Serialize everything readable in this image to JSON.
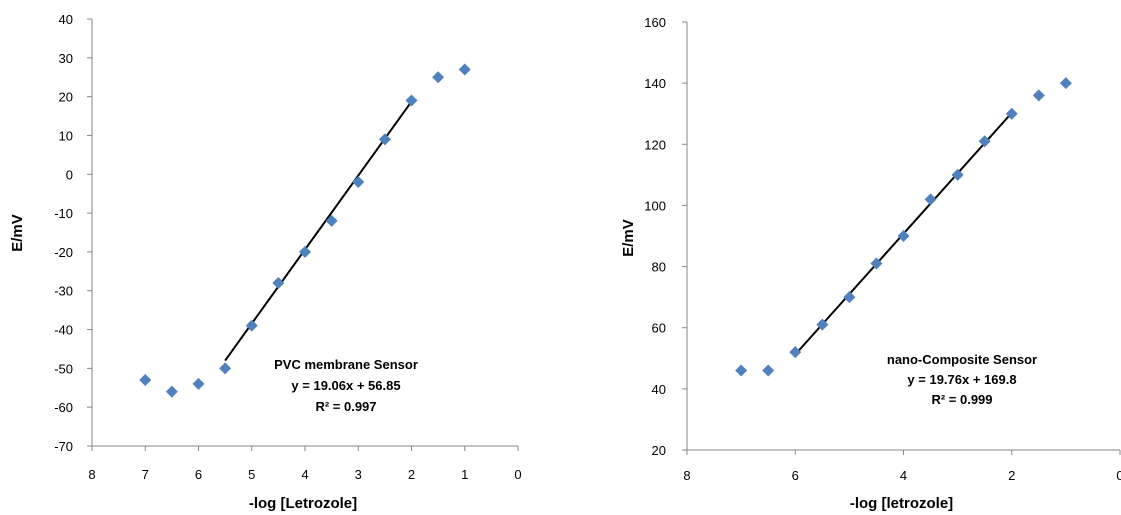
{
  "chart_data": [
    {
      "type": "scatter",
      "xlabel": "-log [Letrozole]",
      "ylabel": "E/mV",
      "xlim": [
        8,
        0
      ],
      "xreversed": true,
      "ylim": [
        -70,
        40
      ],
      "xticks": [
        "8",
        "7",
        "6",
        "5",
        "4",
        "3",
        "2",
        "1",
        "0"
      ],
      "yticks": [
        "40",
        "30",
        "20",
        "10",
        "0",
        "-10",
        "-20",
        "-30",
        "-40",
        "-50",
        "-60",
        "-70"
      ],
      "grid": false,
      "marker_color": "#4F81BD",
      "fit_color": "#000000",
      "points": [
        {
          "x": 7.0,
          "y": -53
        },
        {
          "x": 6.5,
          "y": -56
        },
        {
          "x": 6.0,
          "y": -54
        },
        {
          "x": 5.5,
          "y": -50
        },
        {
          "x": 5.0,
          "y": -39
        },
        {
          "x": 4.5,
          "y": -28
        },
        {
          "x": 4.0,
          "y": -20
        },
        {
          "x": 3.5,
          "y": -12
        },
        {
          "x": 3.0,
          "y": -2
        },
        {
          "x": 2.5,
          "y": 9
        },
        {
          "x": 2.0,
          "y": 19
        },
        {
          "x": 1.5,
          "y": 25
        },
        {
          "x": 1.0,
          "y": 27
        }
      ],
      "fit": {
        "slope": 19.06,
        "intercept": 56.85,
        "x_from": 5.5,
        "x_to": 2.0
      },
      "annotation": [
        "PVC membrane Sensor",
        "y = 19.06x + 56.85",
        "R² = 0.997"
      ]
    },
    {
      "type": "scatter",
      "xlabel": "-log [letrozole]",
      "ylabel": "E/mV",
      "xlim": [
        8,
        0
      ],
      "xreversed": true,
      "ylim": [
        20,
        160
      ],
      "xticks": [
        "8",
        "6",
        "4",
        "2",
        "0"
      ],
      "yticks": [
        "160",
        "140",
        "120",
        "100",
        "80",
        "60",
        "40",
        "20"
      ],
      "grid": false,
      "marker_color": "#4F81BD",
      "fit_color": "#000000",
      "points": [
        {
          "x": 7.0,
          "y": 46
        },
        {
          "x": 6.5,
          "y": 46
        },
        {
          "x": 6.0,
          "y": 52
        },
        {
          "x": 5.5,
          "y": 61
        },
        {
          "x": 5.0,
          "y": 70
        },
        {
          "x": 4.5,
          "y": 81
        },
        {
          "x": 4.0,
          "y": 90
        },
        {
          "x": 3.5,
          "y": 102
        },
        {
          "x": 3.0,
          "y": 110
        },
        {
          "x": 2.5,
          "y": 121
        },
        {
          "x": 2.0,
          "y": 130
        },
        {
          "x": 1.5,
          "y": 136
        },
        {
          "x": 1.0,
          "y": 140
        }
      ],
      "fit": {
        "slope": 19.76,
        "intercept": 169.8,
        "x_from": 6.0,
        "x_to": 2.0
      },
      "annotation": [
        "nano-Composite Sensor",
        "y = 19.76x + 169.8",
        "R² = 0.999"
      ]
    }
  ]
}
